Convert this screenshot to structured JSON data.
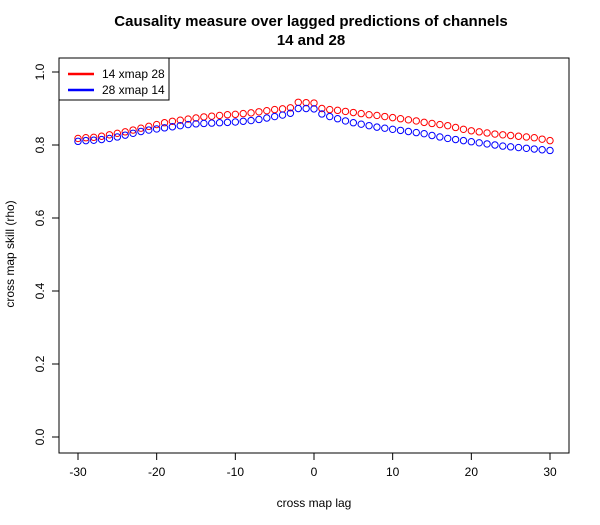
{
  "chart_data": {
    "type": "scatter",
    "title": [
      "Causality measure over lagged predictions of channels",
      "14 and 28"
    ],
    "xlabel": "cross map lag",
    "ylabel": "cross map skill (rho)",
    "xlim": [
      -30,
      30
    ],
    "ylim": [
      0,
      1
    ],
    "xticks": [
      -30,
      -20,
      -10,
      0,
      10,
      20,
      30
    ],
    "xtick_labels": [
      "-30",
      "-20",
      "-10",
      "0",
      "10",
      "20",
      "30"
    ],
    "yticks": [
      0,
      0.2,
      0.4,
      0.6,
      0.8,
      1.0
    ],
    "ytick_labels": [
      "0.0",
      "0.2",
      "0.4",
      "0.6",
      "0.8",
      "1.0"
    ],
    "grid": false,
    "legend_position": "top-left",
    "x": [
      -30,
      -29,
      -28,
      -27,
      -26,
      -25,
      -24,
      -23,
      -22,
      -21,
      -20,
      -19,
      -18,
      -17,
      -16,
      -15,
      -14,
      -13,
      -12,
      -11,
      -10,
      -9,
      -8,
      -7,
      -6,
      -5,
      -4,
      -3,
      -2,
      -1,
      0,
      1,
      2,
      3,
      4,
      5,
      6,
      7,
      8,
      9,
      10,
      11,
      12,
      13,
      14,
      15,
      16,
      17,
      18,
      19,
      20,
      21,
      22,
      23,
      24,
      25,
      26,
      27,
      28,
      29,
      30
    ],
    "series": [
      {
        "name": "14 xmap 28",
        "color": "#ff0000",
        "values": [
          0.818,
          0.82,
          0.821,
          0.824,
          0.828,
          0.832,
          0.836,
          0.841,
          0.846,
          0.851,
          0.856,
          0.861,
          0.865,
          0.868,
          0.871,
          0.874,
          0.877,
          0.879,
          0.881,
          0.883,
          0.884,
          0.886,
          0.888,
          0.891,
          0.894,
          0.897,
          0.899,
          0.902,
          0.917,
          0.916,
          0.915,
          0.9,
          0.897,
          0.895,
          0.892,
          0.889,
          0.886,
          0.883,
          0.881,
          0.878,
          0.875,
          0.872,
          0.869,
          0.866,
          0.862,
          0.859,
          0.856,
          0.853,
          0.848,
          0.843,
          0.839,
          0.836,
          0.833,
          0.83,
          0.828,
          0.826,
          0.824,
          0.822,
          0.82,
          0.816,
          0.812
        ]
      },
      {
        "name": "28 xmap 14",
        "color": "#0000ff",
        "values": [
          0.81,
          0.812,
          0.813,
          0.815,
          0.818,
          0.822,
          0.827,
          0.832,
          0.837,
          0.841,
          0.844,
          0.847,
          0.85,
          0.853,
          0.856,
          0.858,
          0.859,
          0.86,
          0.861,
          0.862,
          0.863,
          0.865,
          0.867,
          0.87,
          0.874,
          0.878,
          0.882,
          0.887,
          0.9,
          0.9,
          0.899,
          0.885,
          0.878,
          0.872,
          0.866,
          0.861,
          0.857,
          0.853,
          0.849,
          0.846,
          0.843,
          0.84,
          0.837,
          0.834,
          0.831,
          0.826,
          0.822,
          0.818,
          0.815,
          0.812,
          0.809,
          0.806,
          0.803,
          0.8,
          0.797,
          0.795,
          0.793,
          0.791,
          0.789,
          0.787,
          0.785
        ]
      }
    ]
  }
}
